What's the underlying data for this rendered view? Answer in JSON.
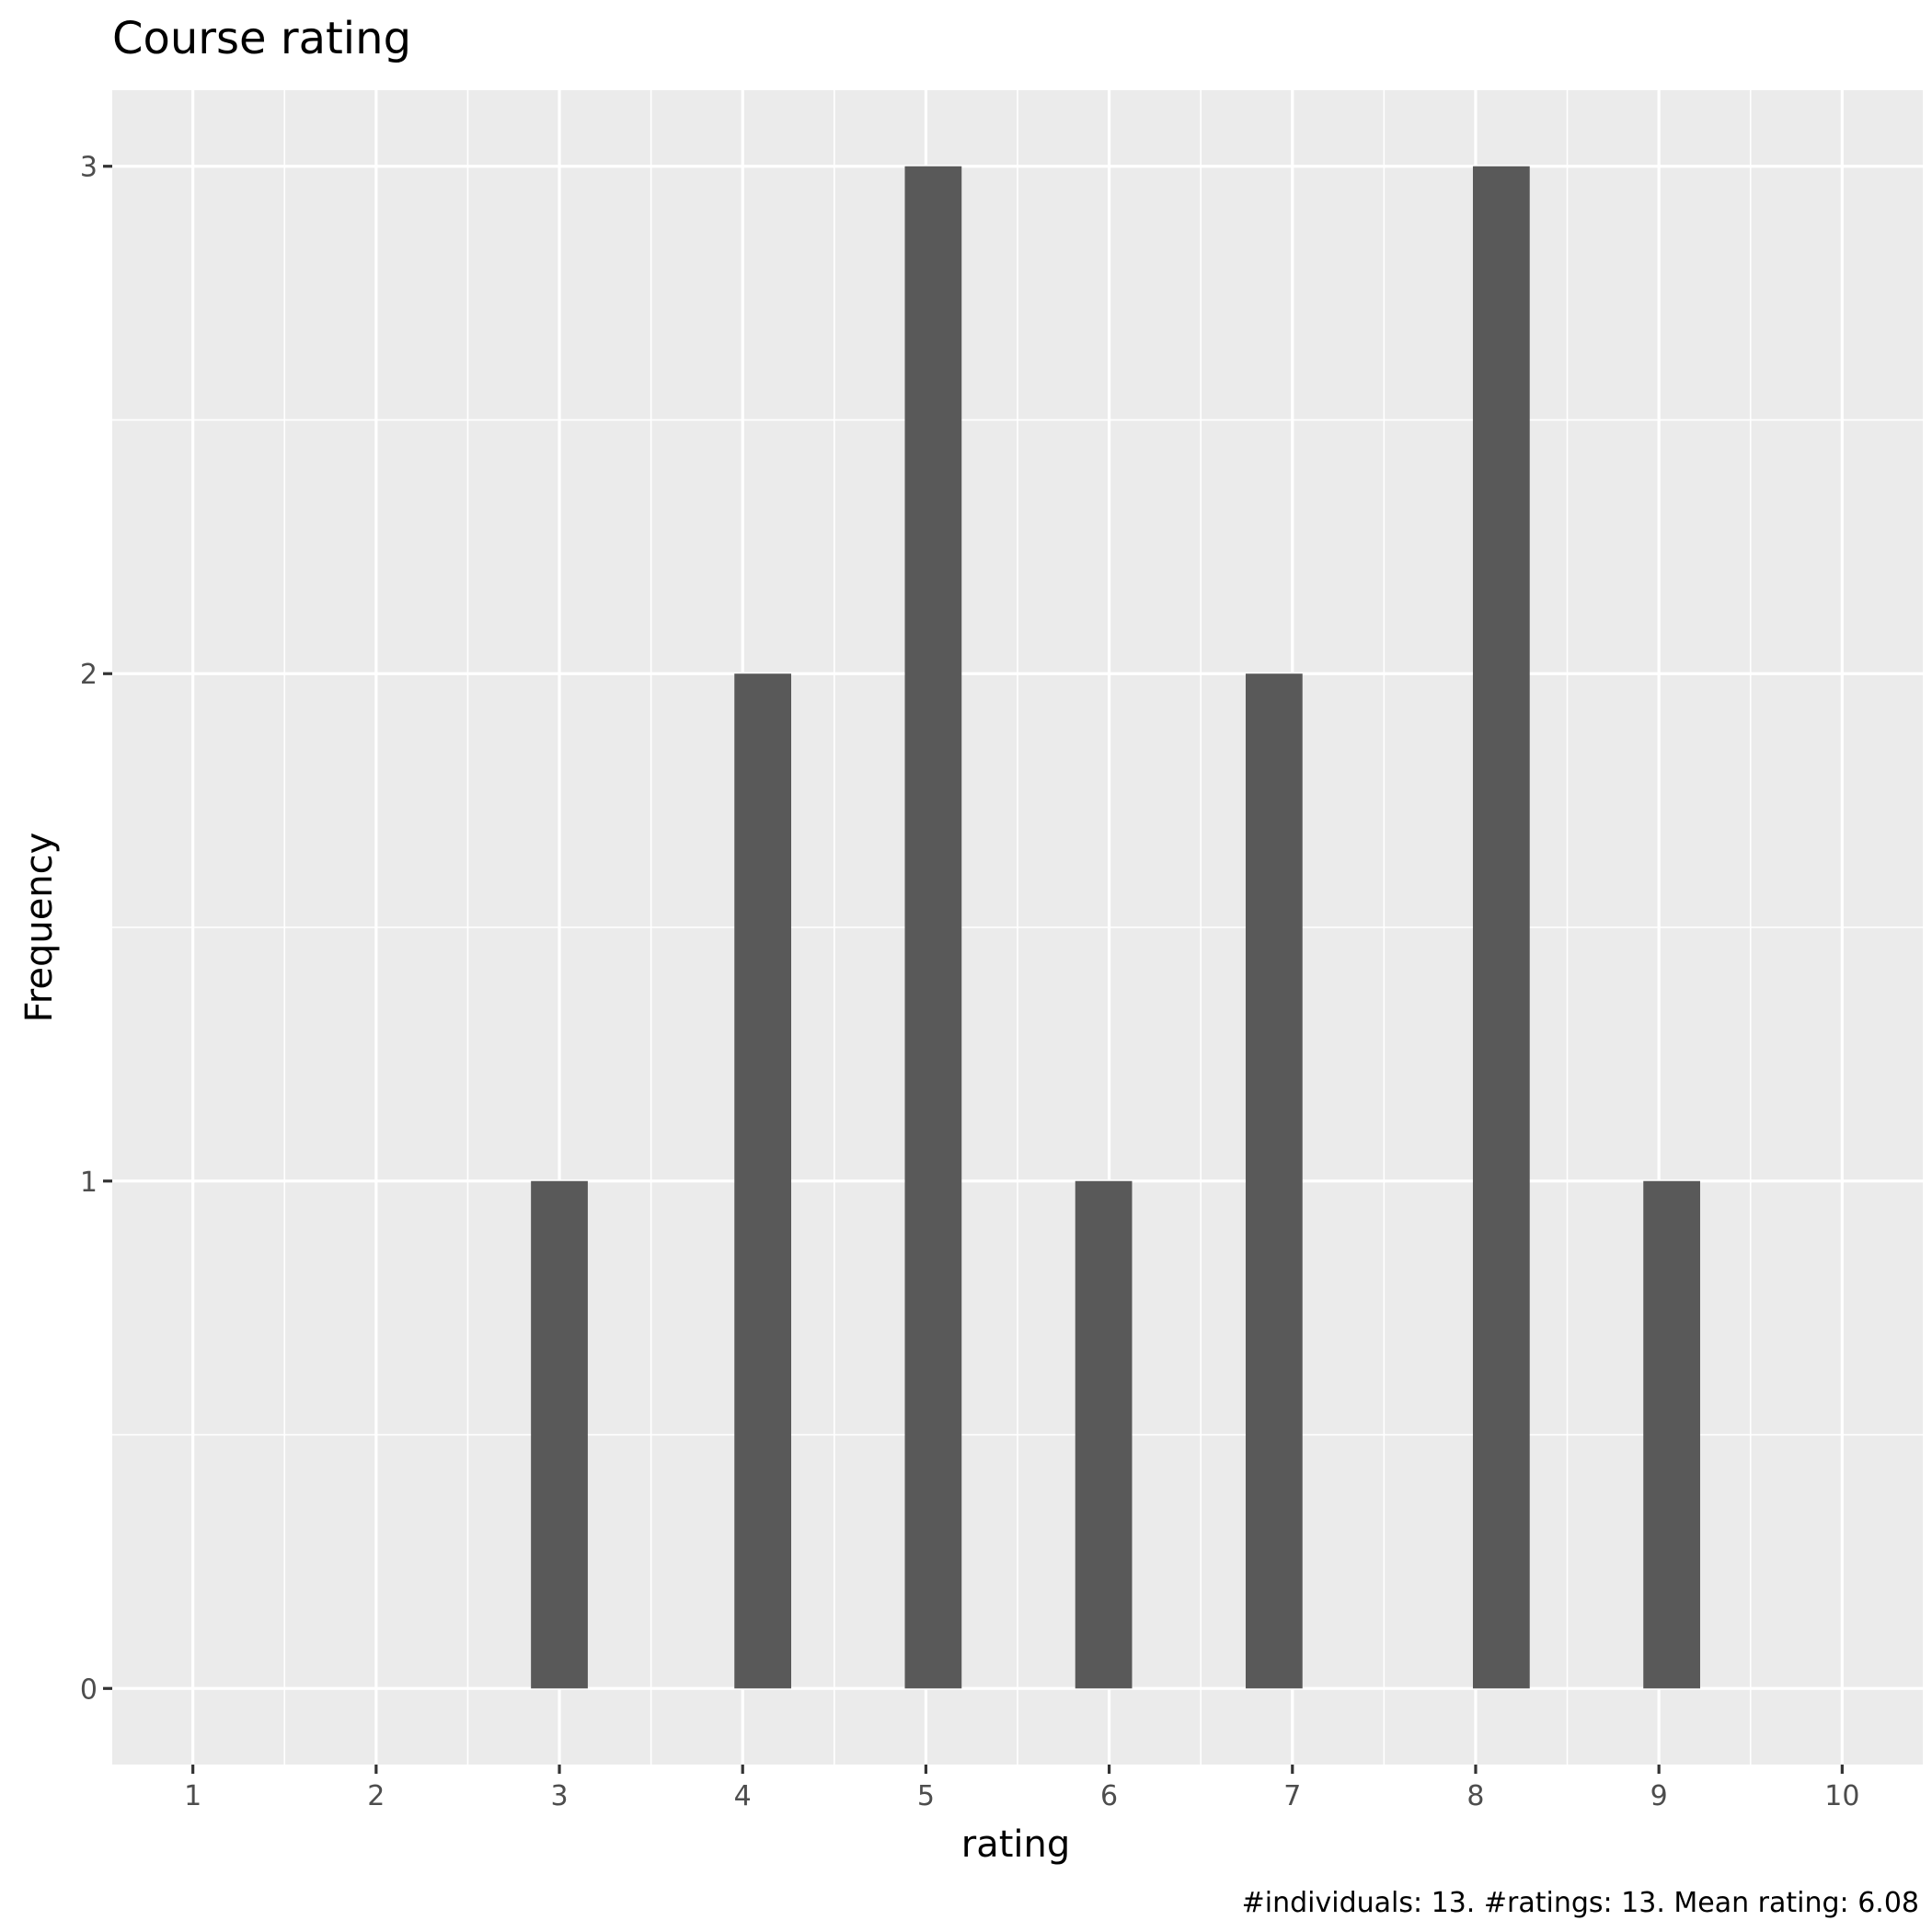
{
  "chart_data": {
    "type": "bar",
    "title": "Course rating",
    "xlabel": "rating",
    "ylabel": "Frequency",
    "caption": "#individuals: 13. #ratings: 13. Mean rating: 6.08",
    "x_ticks": [
      1,
      2,
      3,
      4,
      5,
      6,
      7,
      8,
      9,
      10
    ],
    "y_ticks": [
      0,
      1,
      2,
      3
    ],
    "xlim": [
      0.56,
      10.44
    ],
    "ylim": [
      -0.15,
      3.15
    ],
    "grid": true,
    "bars": [
      {
        "x": 3,
        "value": 1
      },
      {
        "x": 4.11,
        "value": 2
      },
      {
        "x": 5.04,
        "value": 3
      },
      {
        "x": 5.97,
        "value": 1
      },
      {
        "x": 6.9,
        "value": 2
      },
      {
        "x": 8.14,
        "value": 3
      },
      {
        "x": 9.07,
        "value": 1
      }
    ],
    "colors": {
      "bar": "#595959",
      "panel": "#ebebeb",
      "grid": "#ffffff"
    }
  }
}
